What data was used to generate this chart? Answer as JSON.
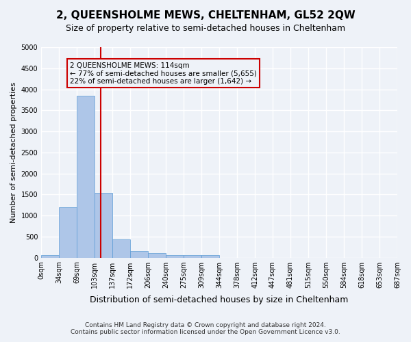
{
  "title": "2, QUEENSHOLME MEWS, CHELTENHAM, GL52 2QW",
  "subtitle": "Size of property relative to semi-detached houses in Cheltenham",
  "xlabel": "Distribution of semi-detached houses by size in Cheltenham",
  "ylabel": "Number of semi-detached properties",
  "footer_line1": "Contains HM Land Registry data © Crown copyright and database right 2024.",
  "footer_line2": "Contains public sector information licensed under the Open Government Licence v3.0.",
  "bin_labels": [
    "0sqm",
    "34sqm",
    "69sqm",
    "103sqm",
    "137sqm",
    "172sqm",
    "206sqm",
    "240sqm",
    "275sqm",
    "309sqm",
    "344sqm",
    "378sqm",
    "412sqm",
    "447sqm",
    "481sqm",
    "515sqm",
    "550sqm",
    "584sqm",
    "618sqm",
    "653sqm",
    "687sqm"
  ],
  "bar_values": [
    50,
    1200,
    3850,
    1530,
    430,
    160,
    100,
    60,
    55,
    55,
    0,
    0,
    0,
    0,
    0,
    0,
    0,
    0,
    0,
    0
  ],
  "bar_color": "#aec6e8",
  "bar_edge_color": "#5b9bd5",
  "background_color": "#eef2f8",
  "grid_color": "#ffffff",
  "red_line_x": 3.35,
  "annotation_text_line1": "2 QUEENSHOLME MEWS: 114sqm",
  "annotation_text_line2": "← 77% of semi-detached houses are smaller (5,655)",
  "annotation_text_line3": "22% of semi-detached houses are larger (1,642) →",
  "annotation_box_color": "#cc0000",
  "ylim": [
    0,
    5000
  ],
  "yticks": [
    0,
    500,
    1000,
    1500,
    2000,
    2500,
    3000,
    3500,
    4000,
    4500,
    5000
  ]
}
